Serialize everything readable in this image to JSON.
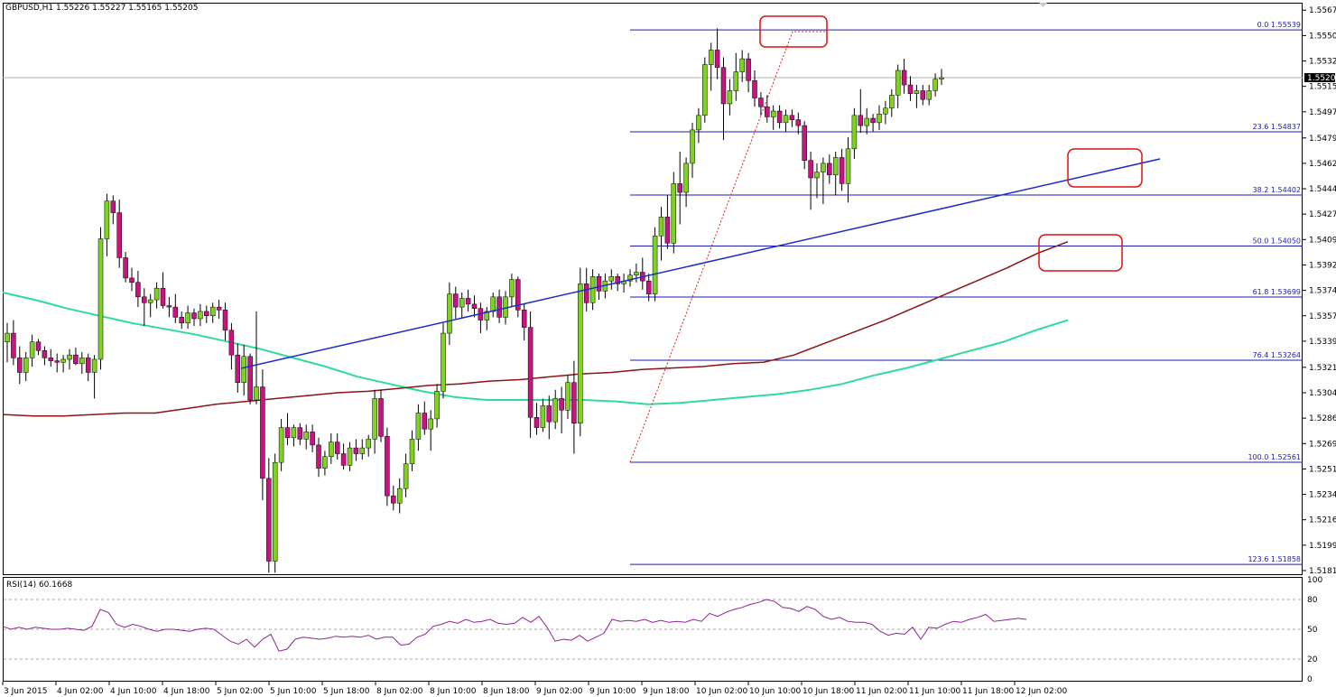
{
  "header": {
    "symbol": "GBPUSD,H1",
    "quote": "1.55226 1.55227 1.55165 1.55205"
  },
  "current_price": "1.55205",
  "colors": {
    "bull": "#7fd320",
    "bear": "#c8147e",
    "ma_fast": "#8b1414",
    "ma_slow": "#2ddc9a",
    "fib": "#1c1cb0",
    "trend": "#1c2ccc",
    "annotation": "#dd1111",
    "zigzag": "#e02020"
  },
  "rsi": {
    "label": "RSI(14) 60.1668",
    "ticks": [
      "100",
      "80",
      "50",
      "20",
      "0"
    ]
  },
  "chart_data": {
    "type": "candlestick",
    "y_ticks": [
      "1.55675",
      "1.55500",
      "1.55325",
      "1.55150",
      "1.54975",
      "1.54795",
      "1.54620",
      "1.54445",
      "1.54270",
      "1.54095",
      "1.53920",
      "1.53745",
      "1.53570",
      "1.53395",
      "1.53215",
      "1.53040",
      "1.52865",
      "1.52690",
      "1.52515",
      "1.52340",
      "1.52165",
      "1.51990",
      "1.51815"
    ],
    "x_ticks": [
      "3 Jun 2015",
      "4 Jun 02:00",
      "4 Jun 10:00",
      "4 Jun 18:00",
      "5 Jun 02:00",
      "5 Jun 10:00",
      "5 Jun 18:00",
      "8 Jun 02:00",
      "8 Jun 10:00",
      "8 Jun 18:00",
      "9 Jun 02:00",
      "9 Jun 10:00",
      "9 Jun 18:00",
      "10 Jun 02:00",
      "10 Jun 10:00",
      "10 Jun 18:00",
      "11 Jun 02:00",
      "11 Jun 10:00",
      "11 Jun 18:00",
      "12 Jun 02:00"
    ],
    "ylim": [
      1.5179,
      1.5572
    ],
    "fib_levels": [
      {
        "label": "0.0 1.55539",
        "price": 1.55539
      },
      {
        "label": "23.6 1.54837",
        "price": 1.54837
      },
      {
        "label": "38.2 1.54402",
        "price": 1.54402
      },
      {
        "label": "50.0 1.54050",
        "price": 1.5405
      },
      {
        "label": "61.8 1.53699",
        "price": 1.53699
      },
      {
        "label": "76.4 1.53264",
        "price": 1.53264
      },
      {
        "label": "100.0 1.52561",
        "price": 1.52561
      },
      {
        "label": "123.6 1.51858",
        "price": 1.51858
      }
    ],
    "candles": [
      [
        1.5339,
        1.5352,
        1.5325,
        1.5345
      ],
      [
        1.5345,
        1.5354,
        1.5323,
        1.5328
      ],
      [
        1.5328,
        1.5336,
        1.531,
        1.5318
      ],
      [
        1.5318,
        1.5332,
        1.5312,
        1.5328
      ],
      [
        1.5328,
        1.5344,
        1.5322,
        1.5339
      ],
      [
        1.5339,
        1.5341,
        1.533,
        1.5333
      ],
      [
        1.5333,
        1.5336,
        1.5323,
        1.5328
      ],
      [
        1.5328,
        1.5334,
        1.5322,
        1.5326
      ],
      [
        1.5326,
        1.5331,
        1.5318,
        1.5325
      ],
      [
        1.5325,
        1.533,
        1.5318,
        1.5327
      ],
      [
        1.5327,
        1.5334,
        1.532,
        1.533
      ],
      [
        1.533,
        1.5335,
        1.5323,
        1.5324
      ],
      [
        1.5324,
        1.5332,
        1.5317,
        1.5328
      ],
      [
        1.5328,
        1.5331,
        1.5312,
        1.5318
      ],
      [
        1.5318,
        1.533,
        1.53,
        1.5327
      ],
      [
        1.5327,
        1.5418,
        1.532,
        1.541
      ],
      [
        1.541,
        1.5441,
        1.5398,
        1.5436
      ],
      [
        1.5436,
        1.544,
        1.542,
        1.5428
      ],
      [
        1.5428,
        1.5437,
        1.539,
        1.5397
      ],
      [
        1.5397,
        1.5401,
        1.538,
        1.5383
      ],
      [
        1.5383,
        1.539,
        1.5374,
        1.538
      ],
      [
        1.538,
        1.5388,
        1.5363,
        1.537
      ],
      [
        1.537,
        1.5376,
        1.535,
        1.5366
      ],
      [
        1.5366,
        1.5372,
        1.5356,
        1.5368
      ],
      [
        1.5368,
        1.538,
        1.5362,
        1.5376
      ],
      [
        1.5376,
        1.5387,
        1.5362,
        1.5364
      ],
      [
        1.5364,
        1.537,
        1.5356,
        1.5363
      ],
      [
        1.5363,
        1.5372,
        1.5352,
        1.5356
      ],
      [
        1.5356,
        1.536,
        1.5348,
        1.5352
      ],
      [
        1.5352,
        1.5364,
        1.5348,
        1.5359
      ],
      [
        1.5359,
        1.5362,
        1.535,
        1.5355
      ],
      [
        1.5355,
        1.5365,
        1.535,
        1.536
      ],
      [
        1.536,
        1.5364,
        1.5352,
        1.5357
      ],
      [
        1.5357,
        1.5366,
        1.5352,
        1.5363
      ],
      [
        1.5363,
        1.5368,
        1.5355,
        1.5361
      ],
      [
        1.5361,
        1.5366,
        1.534,
        1.5347
      ],
      [
        1.5347,
        1.5352,
        1.532,
        1.533
      ],
      [
        1.533,
        1.5338,
        1.5304,
        1.5311
      ],
      [
        1.5311,
        1.5337,
        1.5302,
        1.5329
      ],
      [
        1.5329,
        1.5331,
        1.5296,
        1.5299
      ],
      [
        1.5299,
        1.536,
        1.5296,
        1.5308
      ],
      [
        1.5308,
        1.532,
        1.523,
        1.5245
      ],
      [
        1.5245,
        1.5259,
        1.518,
        1.5188
      ],
      [
        1.5188,
        1.5262,
        1.518,
        1.5256
      ],
      [
        1.5256,
        1.5286,
        1.525,
        1.528
      ],
      [
        1.528,
        1.529,
        1.5268,
        1.5273
      ],
      [
        1.5273,
        1.5282,
        1.5267,
        1.528
      ],
      [
        1.528,
        1.5283,
        1.5268,
        1.5272
      ],
      [
        1.5272,
        1.5282,
        1.5265,
        1.5277
      ],
      [
        1.5277,
        1.5282,
        1.5263,
        1.5268
      ],
      [
        1.5268,
        1.5273,
        1.5246,
        1.5252
      ],
      [
        1.5252,
        1.5264,
        1.5247,
        1.526
      ],
      [
        1.526,
        1.5276,
        1.5255,
        1.527
      ],
      [
        1.527,
        1.5276,
        1.5258,
        1.5262
      ],
      [
        1.5262,
        1.5269,
        1.5251,
        1.5254
      ],
      [
        1.5254,
        1.527,
        1.525,
        1.5266
      ],
      [
        1.5266,
        1.5272,
        1.5257,
        1.5262
      ],
      [
        1.5262,
        1.5272,
        1.5258,
        1.5266
      ],
      [
        1.5266,
        1.5275,
        1.526,
        1.5272
      ],
      [
        1.5272,
        1.5306,
        1.5262,
        1.53
      ],
      [
        1.53,
        1.5306,
        1.527,
        1.5274
      ],
      [
        1.5274,
        1.528,
        1.5226,
        1.5233
      ],
      [
        1.5233,
        1.524,
        1.5223,
        1.5228
      ],
      [
        1.5228,
        1.5245,
        1.5221,
        1.5238
      ],
      [
        1.5238,
        1.5262,
        1.5232,
        1.5255
      ],
      [
        1.5255,
        1.5278,
        1.525,
        1.5272
      ],
      [
        1.5272,
        1.5296,
        1.5264,
        1.529
      ],
      [
        1.529,
        1.5298,
        1.5275,
        1.5279
      ],
      [
        1.5279,
        1.5292,
        1.5264,
        1.5286
      ],
      [
        1.5286,
        1.531,
        1.528,
        1.5305
      ],
      [
        1.5305,
        1.5352,
        1.53,
        1.5345
      ],
      [
        1.5345,
        1.538,
        1.5337,
        1.5372
      ],
      [
        1.5372,
        1.5377,
        1.5355,
        1.5363
      ],
      [
        1.5363,
        1.5373,
        1.5355,
        1.5369
      ],
      [
        1.5369,
        1.5375,
        1.536,
        1.5365
      ],
      [
        1.5365,
        1.5371,
        1.5356,
        1.5362
      ],
      [
        1.5362,
        1.5366,
        1.5345,
        1.5354
      ],
      [
        1.5354,
        1.5363,
        1.5347,
        1.536
      ],
      [
        1.536,
        1.5373,
        1.5356,
        1.537
      ],
      [
        1.537,
        1.5375,
        1.5352,
        1.5356
      ],
      [
        1.5356,
        1.5374,
        1.5351,
        1.537
      ],
      [
        1.537,
        1.5386,
        1.5363,
        1.5382
      ],
      [
        1.5382,
        1.5384,
        1.5356,
        1.5361
      ],
      [
        1.5361,
        1.5365,
        1.534,
        1.5349
      ],
      [
        1.5349,
        1.536,
        1.5273,
        1.5287
      ],
      [
        1.5287,
        1.5297,
        1.5275,
        1.528
      ],
      [
        1.528,
        1.53,
        1.5277,
        1.5295
      ],
      [
        1.5295,
        1.5302,
        1.5272,
        1.5284
      ],
      [
        1.5284,
        1.5306,
        1.5279,
        1.53
      ],
      [
        1.53,
        1.5308,
        1.5276,
        1.5292
      ],
      [
        1.5292,
        1.5316,
        1.5286,
        1.5311
      ],
      [
        1.5311,
        1.5326,
        1.5262,
        1.5283
      ],
      [
        1.5283,
        1.539,
        1.5274,
        1.5379
      ],
      [
        1.5379,
        1.539,
        1.536,
        1.5366
      ],
      [
        1.5366,
        1.5389,
        1.5361,
        1.5384
      ],
      [
        1.5384,
        1.5386,
        1.5368,
        1.5374
      ],
      [
        1.5374,
        1.5386,
        1.5369,
        1.5381
      ],
      [
        1.5381,
        1.5389,
        1.5375,
        1.5384
      ],
      [
        1.5384,
        1.5386,
        1.5374,
        1.5379
      ],
      [
        1.5379,
        1.5386,
        1.5373,
        1.5381
      ],
      [
        1.5381,
        1.5389,
        1.5377,
        1.5385
      ],
      [
        1.5385,
        1.5393,
        1.538,
        1.5387
      ],
      [
        1.5387,
        1.5397,
        1.5375,
        1.5381
      ],
      [
        1.5381,
        1.5386,
        1.5367,
        1.5372
      ],
      [
        1.5372,
        1.5418,
        1.5367,
        1.5412
      ],
      [
        1.5412,
        1.5432,
        1.5395,
        1.5425
      ],
      [
        1.5425,
        1.544,
        1.5403,
        1.5407
      ],
      [
        1.5407,
        1.5456,
        1.54,
        1.5448
      ],
      [
        1.5448,
        1.547,
        1.542,
        1.5442
      ],
      [
        1.5442,
        1.5466,
        1.5432,
        1.5462
      ],
      [
        1.5462,
        1.549,
        1.5452,
        1.5485
      ],
      [
        1.5485,
        1.55,
        1.5476,
        1.5495
      ],
      [
        1.5495,
        1.5535,
        1.549,
        1.553
      ],
      [
        1.553,
        1.5545,
        1.5512,
        1.554
      ],
      [
        1.554,
        1.5555,
        1.552,
        1.5528
      ],
      [
        1.5528,
        1.5535,
        1.5478,
        1.5503
      ],
      [
        1.5503,
        1.552,
        1.5495,
        1.5512
      ],
      [
        1.5512,
        1.5538,
        1.5505,
        1.5525
      ],
      [
        1.5525,
        1.554,
        1.5518,
        1.5534
      ],
      [
        1.5534,
        1.5538,
        1.5511,
        1.5519
      ],
      [
        1.5519,
        1.5526,
        1.5501,
        1.5507
      ],
      [
        1.5507,
        1.5511,
        1.5495,
        1.5501
      ],
      [
        1.5501,
        1.5509,
        1.549,
        1.5494
      ],
      [
        1.5494,
        1.5502,
        1.5485,
        1.5498
      ],
      [
        1.5498,
        1.5502,
        1.5486,
        1.549
      ],
      [
        1.549,
        1.5499,
        1.5484,
        1.5495
      ],
      [
        1.5495,
        1.5499,
        1.5487,
        1.5492
      ],
      [
        1.5492,
        1.5497,
        1.5482,
        1.5488
      ],
      [
        1.5488,
        1.5491,
        1.5458,
        1.5464
      ],
      [
        1.5464,
        1.547,
        1.543,
        1.5452
      ],
      [
        1.5452,
        1.5462,
        1.5438,
        1.5456
      ],
      [
        1.5456,
        1.5466,
        1.5434,
        1.5462
      ],
      [
        1.5462,
        1.5468,
        1.5448,
        1.5454
      ],
      [
        1.5454,
        1.547,
        1.544,
        1.5466
      ],
      [
        1.5466,
        1.5472,
        1.5443,
        1.5448
      ],
      [
        1.5448,
        1.548,
        1.5435,
        1.5472
      ],
      [
        1.5472,
        1.55,
        1.5465,
        1.5495
      ],
      [
        1.5495,
        1.5513,
        1.5483,
        1.5488
      ],
      [
        1.5488,
        1.55,
        1.5482,
        1.5493
      ],
      [
        1.5493,
        1.5496,
        1.5484,
        1.549
      ],
      [
        1.549,
        1.5502,
        1.5485,
        1.5496
      ],
      [
        1.5496,
        1.5505,
        1.5489,
        1.55
      ],
      [
        1.55,
        1.5513,
        1.5494,
        1.5509
      ],
      [
        1.5509,
        1.553,
        1.55,
        1.5526
      ],
      [
        1.5526,
        1.5534,
        1.551,
        1.5516
      ],
      [
        1.5516,
        1.5522,
        1.5505,
        1.551
      ],
      [
        1.551,
        1.5516,
        1.55,
        1.5512
      ],
      [
        1.5512,
        1.5516,
        1.5502,
        1.5506
      ],
      [
        1.5506,
        1.5516,
        1.5502,
        1.5512
      ],
      [
        1.5512,
        1.5524,
        1.5508,
        1.552
      ],
      [
        1.552,
        1.5527,
        1.5516,
        1.5521
      ]
    ],
    "ma_fast": [
      1.5289,
      1.5288,
      1.5288,
      1.5289,
      1.529,
      1.529,
      1.5293,
      1.5296,
      1.5298,
      1.53,
      1.5302,
      1.5304,
      1.5305,
      1.5307,
      1.5309,
      1.531,
      1.5312,
      1.5313,
      1.5315,
      1.5317,
      1.5318,
      1.532,
      1.5321,
      1.5322,
      1.5324,
      1.5325,
      1.533,
      1.5338,
      1.5346,
      1.5354,
      1.5363,
      1.5372,
      1.5381,
      1.539,
      1.54,
      1.5408
    ],
    "ma_slow": [
      1.5373,
      1.5368,
      1.5362,
      1.5357,
      1.5352,
      1.5348,
      1.5344,
      1.5339,
      1.5334,
      1.5328,
      1.5322,
      1.5315,
      1.531,
      1.5305,
      1.5301,
      1.5299,
      1.5299,
      1.5299,
      1.5299,
      1.5298,
      1.5296,
      1.5297,
      1.5299,
      1.5301,
      1.5303,
      1.5306,
      1.531,
      1.5316,
      1.5321,
      1.5327,
      1.5333,
      1.5339,
      1.5347,
      1.5354
    ],
    "trendline": [
      [
        1.5322,
        1.5463
      ]
    ],
    "rsi_values": [
      53,
      50,
      52,
      50,
      52,
      51,
      50,
      50,
      51,
      50,
      49,
      53,
      70,
      67,
      55,
      52,
      55,
      53,
      50,
      48,
      50,
      50,
      49,
      48,
      50,
      51,
      50,
      44,
      38,
      35,
      40,
      32,
      40,
      45,
      28,
      30,
      40,
      42,
      41,
      40,
      41,
      43,
      42,
      43,
      42,
      44,
      40,
      42,
      42,
      34,
      35,
      42,
      45,
      53,
      55,
      58,
      56,
      60,
      57,
      58,
      60,
      56,
      55,
      56,
      62,
      57,
      63,
      52,
      38,
      40,
      39,
      44,
      38,
      42,
      46,
      60,
      58,
      59,
      58,
      60,
      57,
      59,
      57,
      58,
      57,
      60,
      58,
      66,
      63,
      67,
      70,
      72,
      75,
      77,
      80,
      78,
      72,
      71,
      68,
      73,
      70,
      63,
      60,
      62,
      58,
      57,
      57,
      55,
      48,
      44,
      46,
      45,
      52,
      40,
      52,
      51,
      55,
      58,
      57,
      60,
      62,
      65,
      58,
      59,
      60,
      61,
      60
    ]
  }
}
